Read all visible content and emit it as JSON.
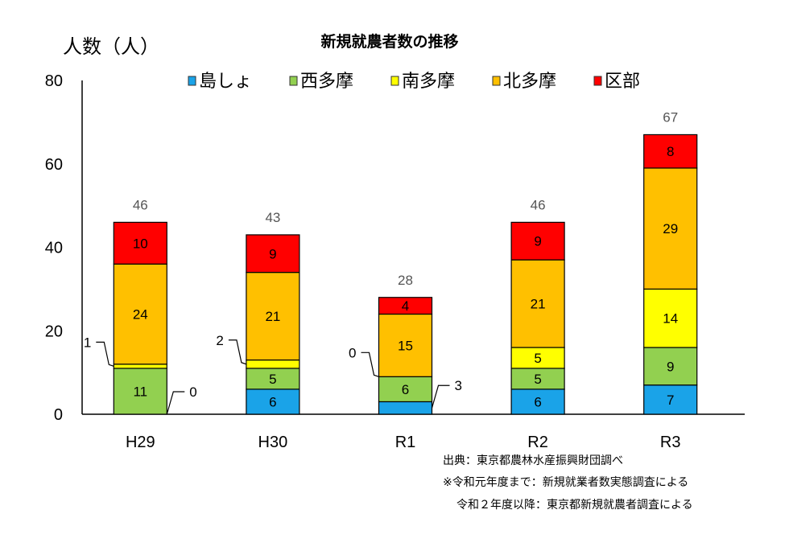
{
  "chart_data": {
    "type": "bar",
    "stacked": true,
    "title": "新規就農者数の推移",
    "ylabel": "人数（人）",
    "xlabel": "",
    "ylim": [
      0,
      80
    ],
    "yticks": [
      0,
      20,
      40,
      60,
      80
    ],
    "grid": false,
    "legend_position": "top",
    "categories": [
      "H29",
      "H30",
      "R1",
      "R2",
      "R3"
    ],
    "series": [
      {
        "name": "島しょ",
        "color": "#1aa3e8",
        "values": [
          0,
          6,
          3,
          6,
          7
        ]
      },
      {
        "name": "西多摩",
        "color": "#92d050",
        "values": [
          11,
          5,
          6,
          5,
          9
        ]
      },
      {
        "name": "南多摩",
        "color": "#ffff00",
        "values": [
          1,
          2,
          0,
          5,
          14
        ]
      },
      {
        "name": "北多摩",
        "color": "#ffc000",
        "values": [
          24,
          21,
          15,
          21,
          29
        ]
      },
      {
        "name": "区部",
        "color": "#ff0000",
        "values": [
          10,
          9,
          4,
          9,
          8
        ]
      }
    ],
    "totals": [
      46,
      43,
      28,
      46,
      67
    ],
    "outside_labels": [
      {
        "category": 0,
        "series": 2,
        "side": "left"
      },
      {
        "category": 0,
        "series": 0,
        "side": "right"
      },
      {
        "category": 1,
        "series": 2,
        "side": "left"
      },
      {
        "category": 2,
        "series": 2,
        "side": "left"
      },
      {
        "category": 2,
        "series": 0,
        "side": "right"
      }
    ]
  },
  "notes": [
    "出典：東京都農林水産振興財団調べ",
    "※令和元年度まで：新規就業者数実態調査による",
    "令和２年度以降：東京都新規就農者調査による"
  ]
}
